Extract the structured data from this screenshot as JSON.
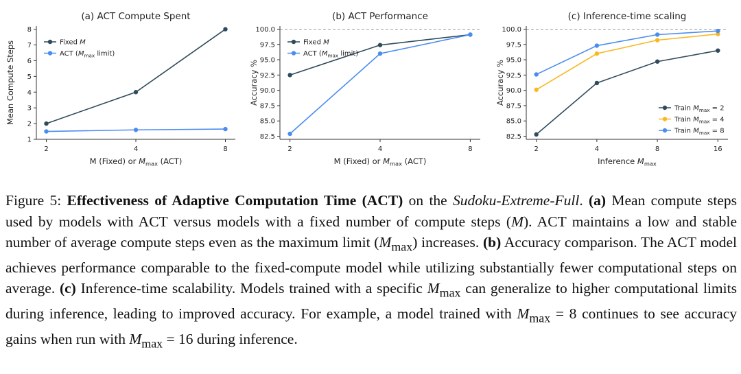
{
  "chart_data": [
    {
      "type": "line",
      "title": "(a) ACT Compute Spent",
      "xlabel_parts": [
        "M (Fixed) or ",
        "M",
        "max",
        " (ACT)"
      ],
      "ylabel": "Mean Compute Steps",
      "x": [
        2,
        4,
        8
      ],
      "xticks": [
        "2",
        "4",
        "8"
      ],
      "yticks": [
        1,
        2,
        3,
        4,
        5,
        6,
        7,
        8
      ],
      "ylim": [
        1,
        8.2
      ],
      "legend_position": "top-left",
      "series": [
        {
          "name_parts": [
            "Fixed ",
            "M",
            ""
          ],
          "color": "#2f4b5c",
          "values": [
            2,
            4,
            8
          ]
        },
        {
          "name_parts": [
            "ACT (",
            "M",
            "max",
            " limit)"
          ],
          "color": "#4a8cf0",
          "values": [
            1.5,
            1.6,
            1.65
          ]
        }
      ]
    },
    {
      "type": "line",
      "title": "(b) ACT Performance",
      "xlabel_parts": [
        "M (Fixed) or ",
        "M",
        "max",
        " (ACT)"
      ],
      "ylabel": "Accuracy %",
      "x": [
        2,
        4,
        8
      ],
      "xticks": [
        "2",
        "4",
        "8"
      ],
      "yticks": [
        "82.5",
        "85.0",
        "87.5",
        "90.0",
        "92.5",
        "95.0",
        "97.5",
        "100.0"
      ],
      "ylim": [
        82,
        100.5
      ],
      "reference_line": 100.0,
      "legend_position": "top-left",
      "series": [
        {
          "name_parts": [
            "Fixed ",
            "M",
            ""
          ],
          "color": "#2f4b5c",
          "values": [
            92.5,
            97.4,
            99.1
          ]
        },
        {
          "name_parts": [
            "ACT (",
            "M",
            "max",
            " limit)"
          ],
          "color": "#4a8cf0",
          "values": [
            82.9,
            96.0,
            99.1
          ]
        }
      ]
    },
    {
      "type": "line",
      "title": "(c) Inference-time scaling",
      "xlabel_parts": [
        "Inference ",
        "M",
        "max",
        ""
      ],
      "ylabel": "Accuracy %",
      "x": [
        2,
        4,
        8,
        16
      ],
      "xticks": [
        "2",
        "4",
        "8",
        "16"
      ],
      "yticks": [
        "82.5",
        "85.0",
        "87.5",
        "90.0",
        "92.5",
        "95.0",
        "97.5",
        "100.0"
      ],
      "ylim": [
        82,
        100.5
      ],
      "reference_line": 100.0,
      "legend_position": "lower-right",
      "series": [
        {
          "name_parts": [
            "Train ",
            "M",
            "max",
            " = 2"
          ],
          "color": "#2f4b5c",
          "values": [
            82.8,
            91.2,
            94.7,
            96.5
          ]
        },
        {
          "name_parts": [
            "Train ",
            "M",
            "max",
            " = 4"
          ],
          "color": "#f7b821",
          "values": [
            90.1,
            96.0,
            98.2,
            99.2
          ]
        },
        {
          "name_parts": [
            "Train ",
            "M",
            "max",
            " = 8"
          ],
          "color": "#4a8cf0",
          "values": [
            92.6,
            97.3,
            99.1,
            99.7
          ]
        }
      ]
    }
  ],
  "caption": {
    "fig_label": "Figure 5: ",
    "heading": "Effectiveness of Adaptive Computation Time (ACT)",
    "on_the": " on the ",
    "dataset": "Sudoku-Extreme-Full",
    "period": ". ",
    "a_label": "(a)",
    "a_text_1": " Mean compute steps used by models with ACT versus models with a fixed number of compute steps (",
    "M": "M",
    "a_text_2": "). ACT maintains a low and stable number of average compute steps even as the maximum limit (",
    "max": "max",
    "a_text_3": ") increases. ",
    "b_label": "(b)",
    "b_text": " Accuracy comparison. The ACT model achieves performance comparable to the fixed-compute model while utilizing substantially fewer computational steps on average. ",
    "c_label": "(c)",
    "c_text_1": " Inference-time scalability. Models trained with a specific ",
    "c_text_2": " can generalize to higher computational limits during inference, leading to improved accuracy. For example, a model trained with ",
    "c_text_3": " = 8 continues to see accuracy gains when run with ",
    "c_text_4": " = 16 during inference."
  }
}
